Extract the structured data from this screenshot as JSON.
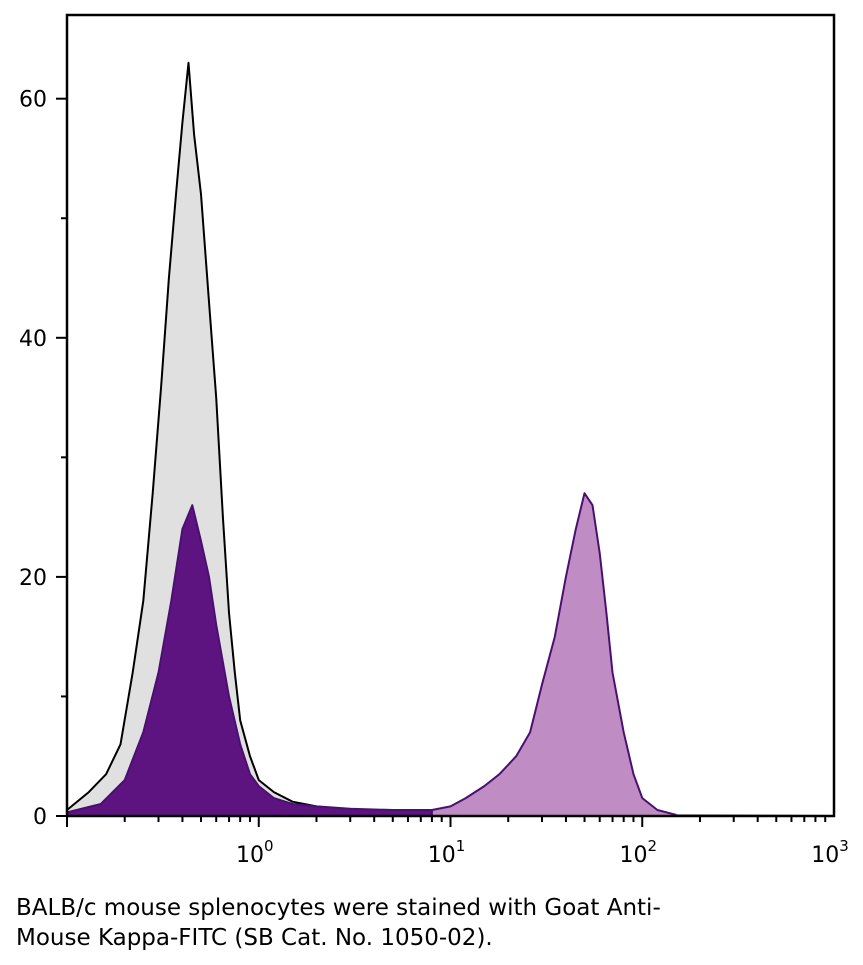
{
  "caption": {
    "line1": "BALB/c mouse splenocytes were stained with Goat Anti-",
    "line2": "Mouse Kappa-FITC (SB Cat. No. 1050-02)."
  },
  "chart_data": {
    "type": "area",
    "title": "",
    "xlabel": "",
    "ylabel": "",
    "x_scale": "log",
    "xlim": [
      0.1,
      1000
    ],
    "ylim": [
      0,
      67
    ],
    "y_ticks": [
      0,
      20,
      40,
      60
    ],
    "y_tick_labels": [
      "0",
      "20",
      "40",
      "60"
    ],
    "x_ticks": [
      1,
      10,
      100,
      1000
    ],
    "x_tick_labels": [
      {
        "base": "10",
        "exp": "0"
      },
      {
        "base": "10",
        "exp": "1"
      },
      {
        "base": "10",
        "exp": "2"
      },
      {
        "base": "10",
        "exp": "3"
      }
    ],
    "grid": false,
    "legend": "none",
    "series": [
      {
        "role": "control",
        "fill": "#e0e0e0",
        "stroke": "#000000",
        "x": [
          0.1,
          0.13,
          0.16,
          0.19,
          0.22,
          0.25,
          0.28,
          0.31,
          0.34,
          0.37,
          0.4,
          0.43,
          0.46,
          0.5,
          0.55,
          0.6,
          0.65,
          0.7,
          0.75,
          0.8,
          0.9,
          1.0,
          1.2,
          1.5,
          2,
          3,
          5,
          10,
          30,
          100,
          1000
        ],
        "y": [
          0.5,
          2.0,
          3.5,
          6,
          12,
          18,
          27,
          36,
          45,
          52,
          58,
          63,
          57,
          52,
          43,
          35,
          25,
          17,
          12,
          8,
          5,
          3,
          2,
          1.2,
          0.8,
          0.5,
          0.3,
          0.2,
          0.1,
          0.05,
          0
        ]
      },
      {
        "role": "stained",
        "fill": "#5e1480",
        "stroke": "#4a1070",
        "x": [
          0.1,
          0.15,
          0.2,
          0.25,
          0.3,
          0.35,
          0.4,
          0.45,
          0.5,
          0.55,
          0.6,
          0.7,
          0.8,
          0.9,
          1.0,
          1.2,
          1.5,
          2,
          3,
          5,
          8
        ],
        "y": [
          0.3,
          1.0,
          3.0,
          7,
          12,
          18,
          24,
          26,
          23,
          20,
          16,
          10,
          6,
          3.5,
          2.5,
          1.5,
          1.0,
          0.8,
          0.6,
          0.5,
          0.5
        ]
      },
      {
        "role": "stained",
        "fill": "#c08cc4",
        "stroke": "#4a1070",
        "x": [
          8,
          10,
          12,
          15,
          18,
          22,
          26,
          30,
          35,
          40,
          45,
          50,
          55,
          60,
          65,
          70,
          80,
          90,
          100,
          120,
          150
        ],
        "y": [
          0.5,
          0.8,
          1.5,
          2.5,
          3.5,
          5,
          7,
          11,
          15,
          20,
          24,
          27,
          26,
          22,
          17,
          12,
          7,
          3.5,
          1.5,
          0.5,
          0.1
        ]
      }
    ]
  }
}
